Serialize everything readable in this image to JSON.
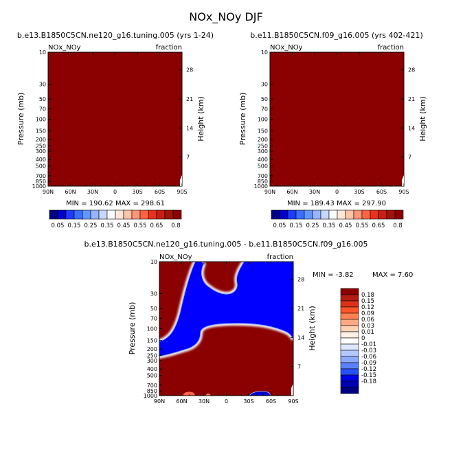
{
  "page_title": "NOx_NOy DJF",
  "colors": {
    "dark_red": "#8b0000",
    "blue": "#0000ff",
    "navy": "#000080",
    "white": "#ffffff"
  },
  "chart_data": [
    {
      "type": "heatmap",
      "title": "b.e13.B1850C5CN.ne120_g16.tuning.005 (yrs 1-24)",
      "corner_left": "NOx_NOy",
      "corner_right": "fraction",
      "ylabel": "Pressure (mb)",
      "ylabel_right": "Height (km)",
      "xticks": [
        "90N",
        "60N",
        "30N",
        "0",
        "30S",
        "60S",
        "90S"
      ],
      "yticks": [
        "10",
        "30",
        "50",
        "70",
        "100",
        "150",
        "200",
        "250",
        "300",
        "400",
        "500",
        "700",
        "850",
        "1000"
      ],
      "yticks_right": [
        "28",
        "21",
        "14",
        "7"
      ],
      "stats": "MIN = 190.62   MAX = 298.61",
      "min": 190.62,
      "max": 298.61,
      "fill": "saturated above 0.8 everywhere"
    },
    {
      "type": "heatmap",
      "title": "b.e11.B1850C5CN.f09_g16.005 (yrs 402-421)",
      "corner_left": "NOx_NOy",
      "corner_right": "fraction",
      "ylabel": "Pressure (mb)",
      "ylabel_right": "Height (km)",
      "xticks": [
        "90N",
        "60N",
        "30N",
        "0",
        "30S",
        "60S",
        "90S"
      ],
      "yticks": [
        "10",
        "30",
        "50",
        "70",
        "100",
        "150",
        "200",
        "250",
        "300",
        "400",
        "500",
        "700",
        "850",
        "1000"
      ],
      "yticks_right": [
        "28",
        "21",
        "14",
        "7"
      ],
      "stats": "MIN = 189.43   MAX = 297.90",
      "min": 189.43,
      "max": 297.9,
      "fill": "saturated above 0.8 everywhere"
    },
    {
      "type": "heatmap",
      "title": "b.e13.B1850C5CN.ne120_g16.tuning.005 - b.e11.B1850C5CN.f09_g16.005",
      "corner_left": "NOx_NOy",
      "corner_right": "fraction",
      "ylabel": "Pressure (mb)",
      "ylabel_right": "Height (km)",
      "xticks": [
        "90N",
        "60N",
        "30N",
        "0",
        "30S",
        "60S",
        "90S"
      ],
      "yticks": [
        "10",
        "30",
        "50",
        "70",
        "100",
        "150",
        "200",
        "250",
        "300",
        "400",
        "500",
        "700",
        "850",
        "1000"
      ],
      "yticks_right": [
        "28",
        "21",
        "14",
        "7"
      ],
      "stats_min": "MIN =   -3.82",
      "stats_max": "MAX =    7.60",
      "min": -3.82,
      "max": 7.6,
      "fill": "positive (dark red) outside a central stratospheric tongue of strongly negative (blue) values"
    }
  ],
  "colorbar_top": {
    "labels": [
      "0.05",
      "0.15",
      "0.25",
      "0.35",
      "0.45",
      "0.55",
      "0.65",
      "0.8"
    ],
    "colors": [
      "#00008b",
      "#0000cd",
      "#1e3cff",
      "#3c6eff",
      "#6496ff",
      "#96b4ff",
      "#c8d7ff",
      "#f5fbff",
      "#ffe6d7",
      "#ffc3a5",
      "#ff9678",
      "#ff6446",
      "#e6321e",
      "#c81e14",
      "#a0140a",
      "#8b0000"
    ]
  },
  "colorbar_diff": {
    "labels": [
      "0.18",
      "0.15",
      "0.12",
      "0.09",
      "0.06",
      "0.03",
      "0.01",
      "0",
      "-0.01",
      "-0.03",
      "-0.06",
      "-0.09",
      "-0.12",
      "-0.15",
      "-0.18"
    ],
    "colors": [
      "#8b0000",
      "#b41e0f",
      "#dc3219",
      "#ff5528",
      "#ff8255",
      "#ffaa82",
      "#ffd2b4",
      "#fff0e6",
      "#ffffff",
      "#dce6ff",
      "#b4c8ff",
      "#8caaff",
      "#5a82ff",
      "#2850ff",
      "#0000e6",
      "#0000b4",
      "#000080"
    ]
  }
}
